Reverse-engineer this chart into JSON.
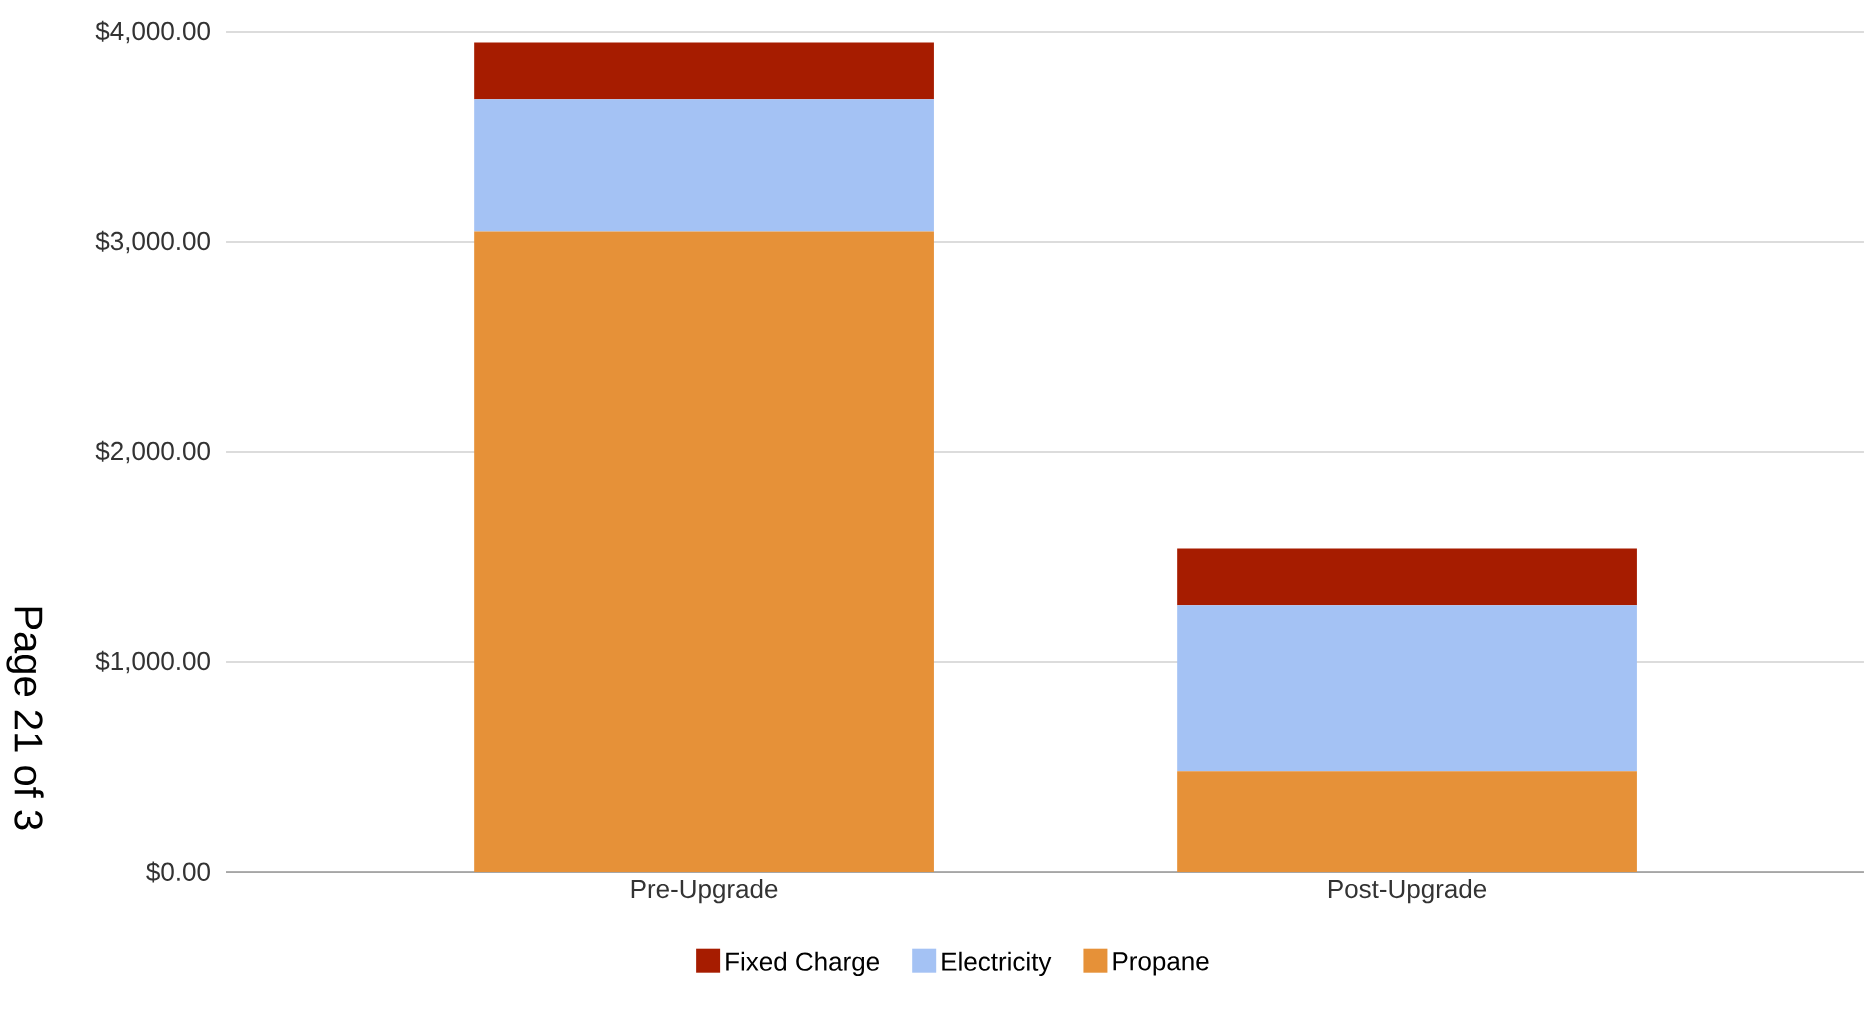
{
  "chart_data": {
    "type": "bar",
    "stacked": true,
    "categories": [
      "Pre-Upgrade",
      "Post-Upgrade"
    ],
    "series": [
      {
        "name": "Propane",
        "color": "#e69138",
        "values": [
          3050,
          480
        ]
      },
      {
        "name": "Electricity",
        "color": "#a4c2f4",
        "values": [
          630,
          790
        ]
      },
      {
        "name": "Fixed Charge",
        "color": "#a61c00",
        "values": [
          270,
          270
        ]
      }
    ],
    "ylim": [
      0,
      4000
    ],
    "yticks": [
      {
        "value": 0,
        "label": "$0.00"
      },
      {
        "value": 1000,
        "label": "$1,000.00"
      },
      {
        "value": 2000,
        "label": "$2,000.00"
      },
      {
        "value": 3000,
        "label": "$3,000.00"
      },
      {
        "value": 4000,
        "label": "$4,000.00"
      }
    ],
    "grid": "y",
    "legend": "bottom",
    "annotations": [
      "Page 21 of 3"
    ]
  }
}
